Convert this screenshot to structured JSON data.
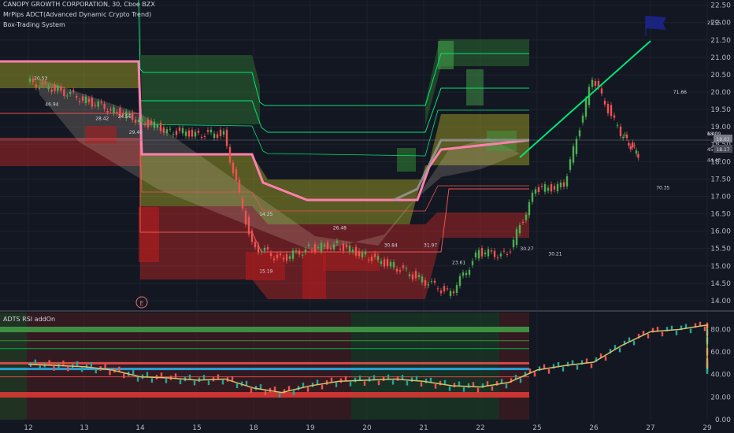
{
  "header": {
    "title": "CANOPY GROWTH CORPORATION, 30, Cboe BZX",
    "indicator_1": "MrPips ADCT(Advanced Dynamic Crypto Trend)",
    "indicator_2": "Box-Trading System"
  },
  "chart_data": [
    {
      "type": "line",
      "pane": "price",
      "x_ticks": [
        "12",
        "13",
        "14",
        "15",
        "18",
        "19",
        "20",
        "21",
        "22",
        "25",
        "26",
        "27",
        "29"
      ],
      "y_ticks": [
        14.0,
        14.5,
        15.0,
        15.5,
        16.0,
        16.5,
        17.0,
        17.5,
        18.0,
        18.5,
        19.0,
        19.5,
        20.0,
        20.5,
        21.0,
        21.5,
        22.0,
        22.5
      ],
      "ylim": [
        13.75,
        22.65
      ],
      "series": [
        {
          "x": [
            0.0,
            0.5,
            1.0,
            1.5,
            2.0,
            2.5,
            3.0,
            3.5,
            4.0,
            4.5,
            5.0,
            5.5,
            6.0,
            6.5,
            7.0,
            7.5,
            8.0,
            8.5,
            9.0,
            9.5,
            10.0,
            10.5,
            10.8
          ],
          "values": [
            20.3,
            20.1,
            19.8,
            19.5,
            19.2,
            18.9,
            18.8,
            18.8,
            15.6,
            15.2,
            15.5,
            15.6,
            15.3,
            15.0,
            14.6,
            14.2,
            15.4,
            15.3,
            17.2,
            17.3,
            20.4,
            18.8,
            18.2
          ]
        },
        {
          "x": [
            0.0,
            2.0,
            2.1,
            3.0,
            4.0,
            4.1,
            5.0,
            5.5,
            6.0,
            6.5,
            7.0,
            7.5,
            8.0,
            8.5,
            9.0,
            9.5,
            10.0,
            10.5,
            10.8
          ],
          "values": [
            21.0,
            21.0,
            21.0,
            21.0,
            21.0,
            19.8,
            18.2,
            18.2,
            18.2,
            17.5,
            17.3,
            16.9,
            16.9,
            16.9,
            17.1,
            17.2,
            18.4,
            18.7,
            18.7
          ]
        },
        {
          "x": [
            10.8,
            12.6
          ],
          "values": [
            18.2,
            21.55
          ]
        }
      ],
      "labels": [
        {
          "x": 0.1,
          "y": 20.35,
          "text": "20.53"
        },
        {
          "x": 0.3,
          "y": 19.6,
          "text": "46.94"
        },
        {
          "x": 1.2,
          "y": 19.2,
          "text": "28.42"
        },
        {
          "x": 1.6,
          "y": 19.25,
          "text": "24.56"
        },
        {
          "x": 1.8,
          "y": 18.8,
          "text": "29.40"
        },
        {
          "x": 4.1,
          "y": 16.45,
          "text": "14.25"
        },
        {
          "x": 4.1,
          "y": 14.8,
          "text": "15.19"
        },
        {
          "x": 5.4,
          "y": 16.05,
          "text": "26.48"
        },
        {
          "x": 6.3,
          "y": 15.55,
          "text": "30.84"
        },
        {
          "x": 7.0,
          "y": 15.55,
          "text": "31.97"
        },
        {
          "x": 7.5,
          "y": 15.05,
          "text": "23.61"
        },
        {
          "x": 8.7,
          "y": 15.45,
          "text": "30.27"
        },
        {
          "x": 9.2,
          "y": 15.3,
          "text": "30.21"
        },
        {
          "x": 11.1,
          "y": 17.2,
          "text": "70.35"
        },
        {
          "x": 11.4,
          "y": 19.95,
          "text": "71.66"
        },
        {
          "x": 12.35,
          "y": 21.95,
          "text": "21.55"
        },
        {
          "x": 12.6,
          "y": 18.3,
          "text": "45.26"
        },
        {
          "x": 13.1,
          "y": 18.0,
          "text": "44.43"
        },
        {
          "x": 13.6,
          "y": 18.75,
          "text": "18.09"
        },
        {
          "x": 13.9,
          "y": 18.75,
          "text": "6.40"
        }
      ],
      "price_labels": [
        "18.63",
        "18.17"
      ]
    },
    {
      "type": "line",
      "pane": "oscillator",
      "title": "ADTS RSI addOn",
      "y_ticks": [
        0.0,
        20.0,
        40.0,
        60.0,
        80.0
      ],
      "ylim": [
        0,
        95
      ],
      "levels": [
        80,
        70,
        63,
        50,
        45,
        38,
        22
      ],
      "series": [
        {
          "x": [
            0.0,
            0.5,
            1.0,
            1.5,
            2.0,
            2.5,
            3.0,
            3.5,
            4.0,
            4.5,
            5.0,
            5.5,
            6.0,
            6.5,
            7.0,
            7.5,
            8.0,
            8.5,
            9.0,
            9.5,
            10.0,
            10.5,
            11.0,
            11.5,
            12.0,
            12.5,
            13.0,
            13.5,
            14.0
          ],
          "values": [
            49,
            48,
            47,
            44,
            38,
            37,
            35,
            36,
            28,
            24,
            30,
            34,
            35,
            36,
            34,
            30,
            29,
            33,
            44,
            48,
            51,
            66,
            78,
            80,
            84,
            72,
            52,
            45,
            47
          ]
        }
      ]
    }
  ],
  "colors": {
    "background": "#131722",
    "up_candle": "#4caf50",
    "down_candle": "#ef5350",
    "yellow_band": "#9e9d24",
    "green_band": "#2e7d32",
    "red_band": "#c62828",
    "pink_line": "#ff80ab",
    "projection": "#00e676",
    "flag": "#1a237e"
  },
  "icons": {
    "event_marker": "E",
    "target_flag": "flag-icon"
  }
}
